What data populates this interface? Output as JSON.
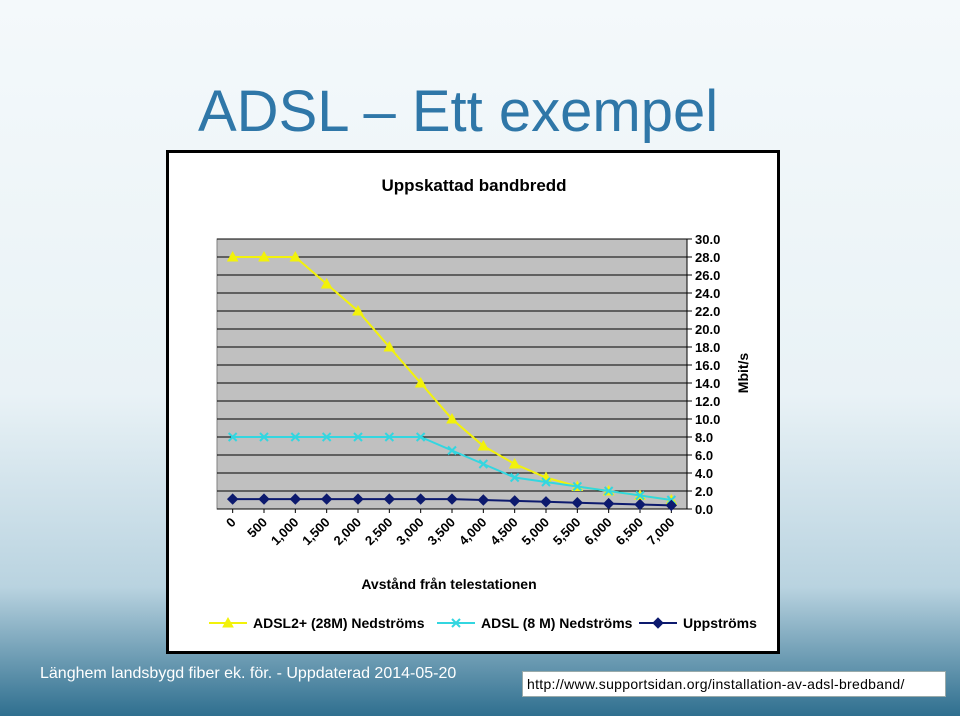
{
  "slide": {
    "title": "ADSL – Ett exempel",
    "footer_left": "Länghem landsbygd fiber ek. för. - Uppdaterad 2014-05-20",
    "footer_right": "http://www.supportsidan.org/installation-av-adsl-bredband/"
  },
  "chart_data": {
    "type": "line",
    "title": "Uppskattad bandbredd",
    "xlabel": "Avstånd från telestationen",
    "ylabel": "Mbit/s",
    "categories": [
      "0",
      "500",
      "1,000",
      "1,500",
      "2,000",
      "2,500",
      "3,000",
      "3,500",
      "4,000",
      "4,500",
      "5,000",
      "5,500",
      "6,000",
      "6,500",
      "7,000"
    ],
    "y_ticks": [
      "0.0",
      "2.0",
      "4.0",
      "6.0",
      "8.0",
      "10.0",
      "12.0",
      "14.0",
      "16.0",
      "18.0",
      "20.0",
      "22.0",
      "24.0",
      "26.0",
      "28.0",
      "30.0"
    ],
    "ylim": [
      0,
      30
    ],
    "y_axis_side": "right",
    "grid": true,
    "legend_position": "bottom",
    "series": [
      {
        "name": "ADSL2+ (28M) Nedströms",
        "color": "#f2f20a",
        "marker": "triangle",
        "values": [
          28,
          28,
          28,
          25,
          22,
          18,
          14,
          10,
          7,
          5,
          3.5,
          2.5,
          2,
          1.5,
          1
        ]
      },
      {
        "name": "ADSL (8 M) Nedströms",
        "color": "#33d6e0",
        "marker": "x",
        "values": [
          8,
          8,
          8,
          8,
          8,
          8,
          8,
          6.5,
          5,
          3.5,
          3,
          2.5,
          2,
          1.5,
          1
        ]
      },
      {
        "name": "Uppströms",
        "color": "#0d1a6e",
        "marker": "diamond",
        "values": [
          1.1,
          1.1,
          1.1,
          1.1,
          1.1,
          1.1,
          1.1,
          1.1,
          1.0,
          0.9,
          0.8,
          0.7,
          0.6,
          0.5,
          0.4
        ]
      }
    ]
  }
}
